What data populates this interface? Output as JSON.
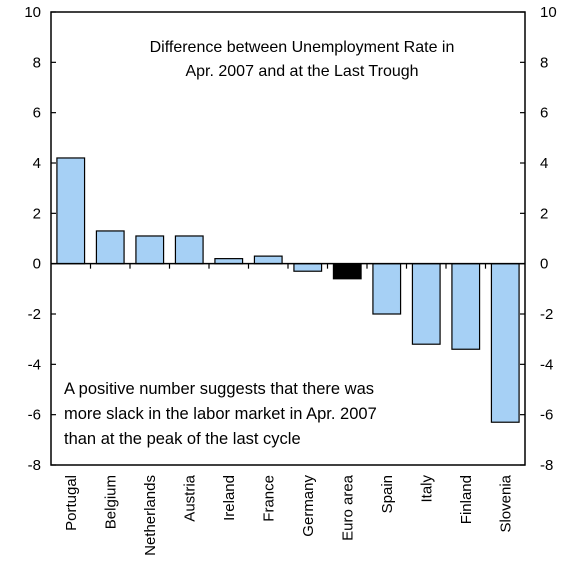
{
  "chart_data": {
    "type": "bar",
    "title_lines": [
      "Difference between Unemployment Rate in",
      "Apr. 2007 and at the Last Trough"
    ],
    "annotation_lines": [
      "A positive number suggests that there was",
      "more slack in the labor market in Apr. 2007",
      "than at the peak of the last cycle"
    ],
    "categories": [
      "Portugal",
      "Belgium",
      "Netherlands",
      "Austria",
      "Ireland",
      "France",
      "Germany",
      "Euro area",
      "Spain",
      "Italy",
      "Finland",
      "Slovenia"
    ],
    "values": [
      4.2,
      1.3,
      1.1,
      1.1,
      0.2,
      0.3,
      -0.3,
      -0.6,
      -2.0,
      -3.2,
      -3.4,
      -6.3
    ],
    "highlight": [
      "Euro area"
    ],
    "ylim": [
      -8,
      10
    ],
    "yticks": [
      -8,
      -6,
      -4,
      -2,
      0,
      2,
      4,
      6,
      8,
      10
    ],
    "ytick_labels": [
      "-8",
      "-6",
      "-4",
      "-2",
      "0",
      "2",
      "4",
      "6",
      "8",
      "10"
    ],
    "grid": false,
    "right_axis_mirrors_left": true,
    "colors": {
      "bar": "#a6d0f5",
      "highlight": "#000000",
      "axis": "#000000"
    }
  }
}
